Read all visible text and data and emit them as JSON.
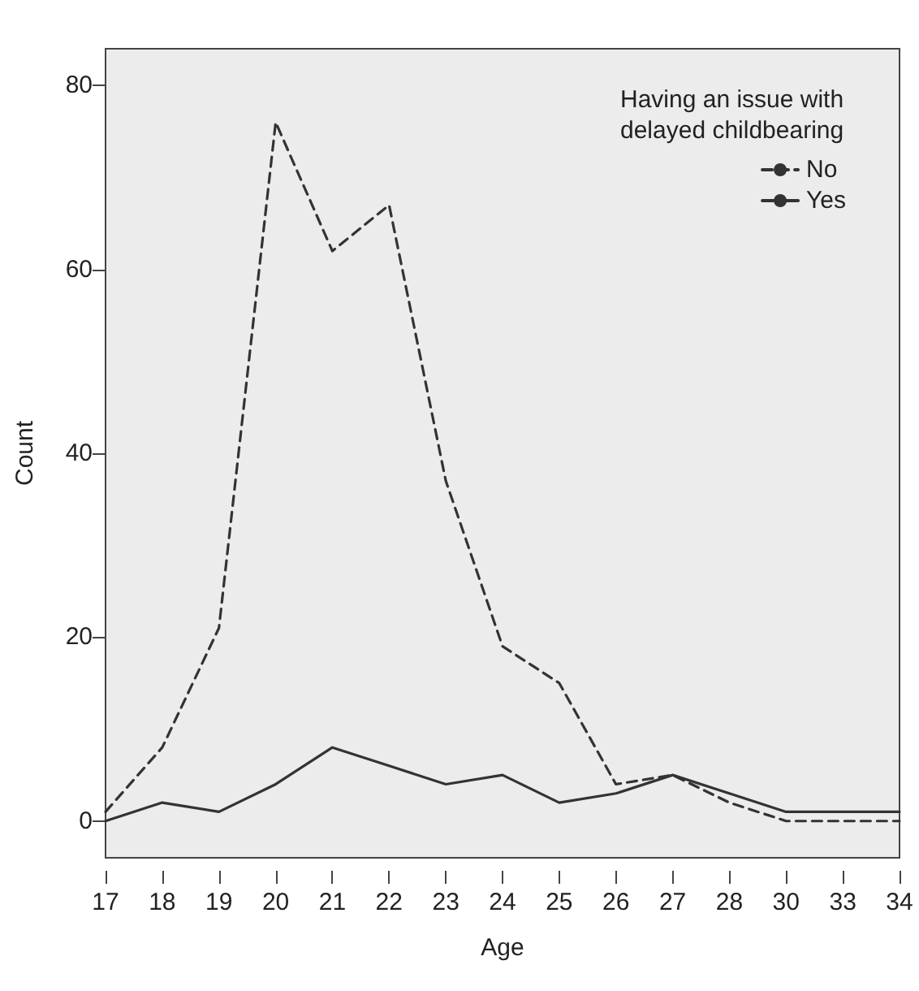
{
  "chart_data": {
    "type": "line",
    "xlabel": "Age",
    "ylabel": "Count",
    "legend_title": "Having an issue with delayed childbearing",
    "categories": [
      "17",
      "18",
      "19",
      "20",
      "21",
      "22",
      "23",
      "24",
      "25",
      "26",
      "27",
      "28",
      "30",
      "33",
      "34"
    ],
    "series": [
      {
        "name": "No",
        "color": "#333333",
        "line_style": "dashed",
        "values": [
          1,
          8,
          21,
          76,
          62,
          67,
          37,
          19,
          15,
          4,
          5,
          2,
          0,
          0,
          0
        ]
      },
      {
        "name": "Yes",
        "color": "#333333",
        "line_style": "solid",
        "values": [
          0,
          2,
          1,
          4,
          8,
          6,
          4,
          5,
          2,
          3,
          5,
          3,
          1,
          1,
          1
        ]
      }
    ],
    "ylim": [
      -4,
      84
    ],
    "yticks": [
      0,
      20,
      40,
      60,
      80
    ],
    "grid": false,
    "legend": "top right",
    "marker": "none"
  }
}
